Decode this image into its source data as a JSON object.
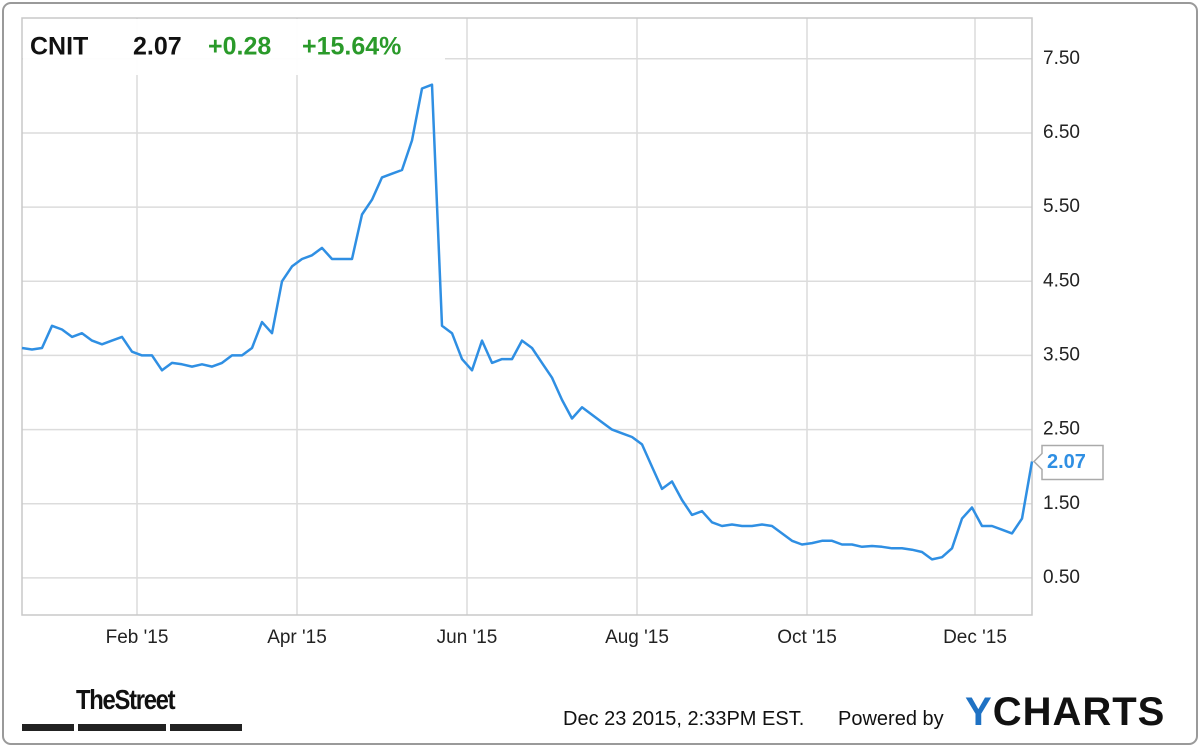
{
  "chart_data": {
    "type": "line",
    "ticker": "CNIT",
    "price": "2.07",
    "change": "+0.28",
    "change_pct": "+15.64%",
    "series": [
      {
        "name": "CNIT",
        "color": "#2f8fe3",
        "values": [
          3.6,
          3.58,
          3.6,
          3.9,
          3.85,
          3.75,
          3.8,
          3.7,
          3.65,
          3.7,
          3.75,
          3.55,
          3.5,
          3.5,
          3.3,
          3.4,
          3.38,
          3.35,
          3.38,
          3.35,
          3.4,
          3.5,
          3.5,
          3.6,
          3.95,
          3.8,
          4.5,
          4.7,
          4.8,
          4.85,
          4.95,
          4.8,
          4.8,
          4.8,
          5.4,
          5.6,
          5.9,
          5.95,
          6.0,
          6.4,
          7.1,
          7.15,
          3.9,
          3.8,
          3.45,
          3.3,
          3.7,
          3.4,
          3.45,
          3.45,
          3.7,
          3.6,
          3.4,
          3.2,
          2.9,
          2.65,
          2.8,
          2.7,
          2.6,
          2.5,
          2.45,
          2.4,
          2.3,
          2.0,
          1.7,
          1.8,
          1.55,
          1.35,
          1.4,
          1.25,
          1.2,
          1.22,
          1.2,
          1.2,
          1.22,
          1.2,
          1.1,
          1.0,
          0.95,
          0.97,
          1.0,
          1.0,
          0.95,
          0.95,
          0.92,
          0.93,
          0.92,
          0.9,
          0.9,
          0.88,
          0.85,
          0.75,
          0.78,
          0.9,
          1.3,
          1.45,
          1.2,
          1.2,
          1.15,
          1.1,
          1.3,
          2.07
        ]
      }
    ],
    "xlim": [
      0,
      101
    ],
    "xticks": [
      {
        "value": 11.5,
        "label": "Feb '15"
      },
      {
        "value": 27.5,
        "label": "Apr '15"
      },
      {
        "value": 44.5,
        "label": "Jun '15"
      },
      {
        "value": 61.5,
        "label": "Aug '15"
      },
      {
        "value": 78.5,
        "label": "Oct '15"
      },
      {
        "value": 95.3,
        "label": "Dec '15"
      }
    ],
    "ylim": [
      0,
      8.05
    ],
    "yticks": [
      {
        "value": 0.5,
        "label": "0.50"
      },
      {
        "value": 1.5,
        "label": "1.50"
      },
      {
        "value": 2.5,
        "label": "2.50"
      },
      {
        "value": 3.5,
        "label": "3.50"
      },
      {
        "value": 4.5,
        "label": "4.50"
      },
      {
        "value": 5.5,
        "label": "5.50"
      },
      {
        "value": 6.5,
        "label": "6.50"
      },
      {
        "value": 7.5,
        "label": "7.50"
      }
    ],
    "grid": true,
    "timestamp": "Dec 23 2015, 2:33PM EST.",
    "powered_by": "Powered by",
    "brand": "YCHARTS",
    "partner": "TheStreet"
  }
}
